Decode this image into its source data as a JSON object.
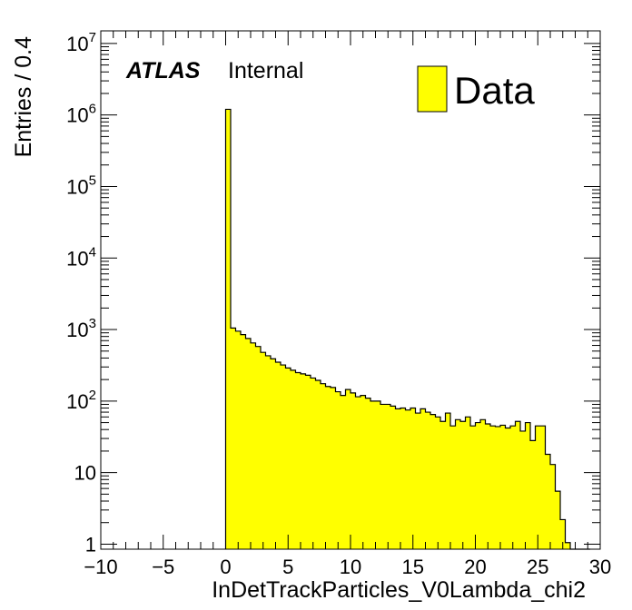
{
  "chart_data": {
    "type": "histogram",
    "title": "",
    "xlabel": "InDetTrackParticles_V0Lambda_chi2",
    "ylabel": "Entries / 0.4",
    "xlim": [
      -10,
      30
    ],
    "ylim": [
      0.85,
      15000000
    ],
    "yscale": "log",
    "bin_width": 0.4,
    "grid": false,
    "legend_position": "top-right",
    "x_ticks": [
      "−10",
      "−5",
      "0",
      "5",
      "10",
      "15",
      "20",
      "25",
      "30"
    ],
    "y_ticks": [
      {
        "base": "1",
        "exp": ""
      },
      {
        "base": "10",
        "exp": ""
      },
      {
        "base": "10",
        "exp": "2"
      },
      {
        "base": "10",
        "exp": "3"
      },
      {
        "base": "10",
        "exp": "4"
      },
      {
        "base": "10",
        "exp": "5"
      },
      {
        "base": "10",
        "exp": "6"
      },
      {
        "base": "10",
        "exp": "7"
      }
    ],
    "annotations": {
      "experiment": "ATLAS",
      "status": "Internal"
    },
    "series": [
      {
        "name": "Data",
        "color": "#ffff00",
        "edge_color": "#000000",
        "bin_start": 0.0,
        "values": [
          1200000,
          1050,
          950,
          850,
          750,
          650,
          580,
          480,
          430,
          390,
          350,
          320,
          290,
          270,
          250,
          240,
          230,
          210,
          195,
          175,
          160,
          155,
          135,
          120,
          145,
          130,
          115,
          120,
          110,
          100,
          100,
          90,
          90,
          85,
          78,
          80,
          75,
          80,
          68,
          78,
          70,
          65,
          60,
          52,
          68,
          45,
          55,
          52,
          60,
          45,
          50,
          55,
          48,
          45,
          44,
          46,
          42,
          45,
          52,
          38,
          50,
          28,
          45,
          45,
          18,
          13,
          5.5,
          2.2,
          1.05,
          0.85,
          0.85,
          0.85,
          0.85
        ]
      }
    ]
  }
}
